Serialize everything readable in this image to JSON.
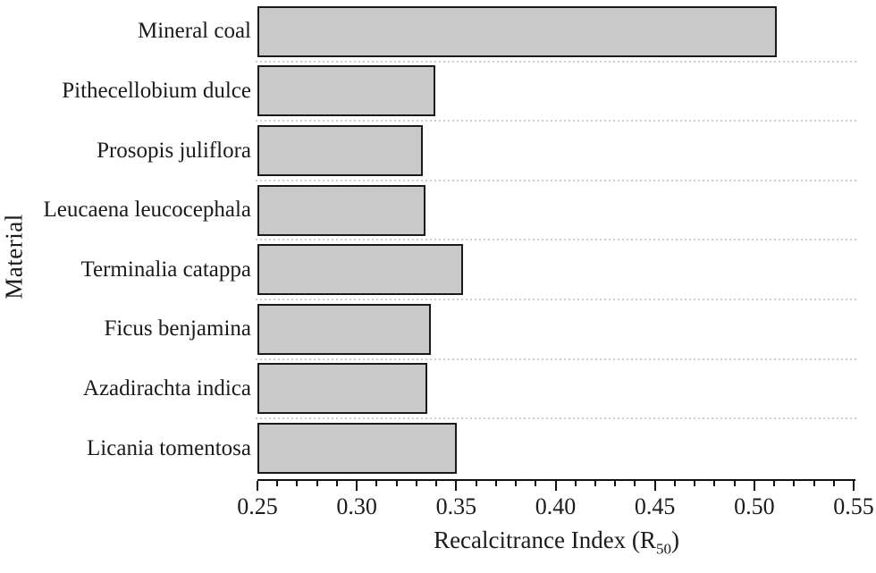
{
  "chart_data": {
    "type": "bar",
    "orientation": "horizontal",
    "categories": [
      "Mineral coal",
      "Pithecellobium dulce",
      "Prosopis juliflora",
      "Leucaena leucocephala",
      "Terminalia catappa",
      "Ficus benjamina",
      "Azadirachta indica",
      "Licania tomentosa"
    ],
    "values": [
      0.51,
      0.338,
      0.332,
      0.333,
      0.352,
      0.336,
      0.334,
      0.349
    ],
    "xlabel": "Recalcitrance Index (R50)",
    "xlabel_prefix": "Recalcitrance Index (R",
    "xlabel_subscript": "50",
    "xlabel_suffix": ")",
    "ylabel": "Material",
    "xlim": [
      0.25,
      0.55
    ],
    "x_ticks": [
      "0.25",
      "0.30",
      "0.35",
      "0.40",
      "0.45",
      "0.50",
      "0.55"
    ],
    "x_major_tick_step": 0.05,
    "x_minor_tick_step": 0.01,
    "legend_position": "none",
    "grid": "dotted horizontal separators between category rows",
    "colors": {
      "bar_fill": "#c9c9c9",
      "bar_border": "#1a1a1a",
      "text": "#1b1b1b",
      "separator": "#cdcdcd"
    }
  }
}
